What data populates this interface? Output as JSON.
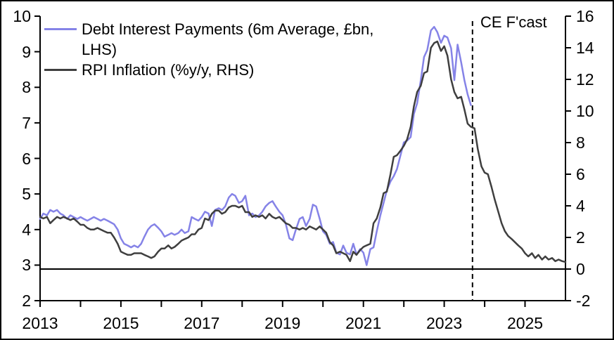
{
  "chart_data": {
    "type": "line",
    "title": "",
    "legend": {
      "items": [
        {
          "id": "debt-interest",
          "color": "#8583E7",
          "label": "Debt Interest Payments (6m Average, £bn, LHS)",
          "lines": [
            "Debt Interest Payments (6m Average, £bn,",
            "LHS)"
          ]
        },
        {
          "id": "rpi-inflation",
          "color": "#3F3F3F",
          "label": "RPI Inflation (%y/y, RHS)",
          "lines": [
            "RPI Inflation (%y/y, RHS)",
            ""
          ]
        }
      ]
    },
    "annotation": {
      "label": "CE F'cast",
      "x_year": 2023.7
    },
    "x_axis": {
      "min": 2013,
      "max": 2026,
      "tick_years": [
        2013,
        2014,
        2015,
        2016,
        2017,
        2018,
        2019,
        2020,
        2021,
        2022,
        2023,
        2024,
        2025
      ],
      "label_years": [
        2013,
        2015,
        2017,
        2019,
        2021,
        2023,
        2025
      ]
    },
    "left_axis": {
      "min": 2,
      "max": 10,
      "ticks": [
        2,
        3,
        4,
        5,
        6,
        7,
        8,
        9,
        10
      ]
    },
    "right_axis": {
      "min": -2,
      "max": 16,
      "ticks": [
        -2,
        0,
        2,
        4,
        6,
        8,
        10,
        12,
        14,
        16
      ],
      "zero_line": 0
    },
    "colors": {
      "axis": "#000000",
      "forecast_divider": "#000000",
      "background": "#ffffff"
    },
    "series": [
      {
        "id": "debt-interest",
        "name": "Debt Interest Payments (6m Average, £bn, LHS)",
        "axis": "left",
        "color": "#8583E7",
        "points": [
          [
            2013.0,
            4.3
          ],
          [
            2013.08,
            4.45
          ],
          [
            2013.17,
            4.4
          ],
          [
            2013.25,
            4.55
          ],
          [
            2013.33,
            4.5
          ],
          [
            2013.42,
            4.55
          ],
          [
            2013.5,
            4.45
          ],
          [
            2013.58,
            4.4
          ],
          [
            2013.67,
            4.3
          ],
          [
            2013.75,
            4.4
          ],
          [
            2013.83,
            4.35
          ],
          [
            2013.92,
            4.3
          ],
          [
            2014.0,
            4.35
          ],
          [
            2014.08,
            4.3
          ],
          [
            2014.17,
            4.25
          ],
          [
            2014.25,
            4.3
          ],
          [
            2014.33,
            4.35
          ],
          [
            2014.42,
            4.3
          ],
          [
            2014.5,
            4.25
          ],
          [
            2014.58,
            4.3
          ],
          [
            2014.67,
            4.25
          ],
          [
            2014.75,
            4.2
          ],
          [
            2014.83,
            4.15
          ],
          [
            2014.92,
            4.0
          ],
          [
            2015.0,
            3.75
          ],
          [
            2015.08,
            3.6
          ],
          [
            2015.17,
            3.55
          ],
          [
            2015.25,
            3.5
          ],
          [
            2015.33,
            3.55
          ],
          [
            2015.42,
            3.5
          ],
          [
            2015.5,
            3.6
          ],
          [
            2015.58,
            3.8
          ],
          [
            2015.67,
            4.0
          ],
          [
            2015.75,
            4.1
          ],
          [
            2015.83,
            4.15
          ],
          [
            2015.92,
            4.05
          ],
          [
            2016.0,
            3.95
          ],
          [
            2016.08,
            3.8
          ],
          [
            2016.17,
            3.85
          ],
          [
            2016.25,
            3.9
          ],
          [
            2016.33,
            3.85
          ],
          [
            2016.42,
            3.9
          ],
          [
            2016.5,
            4.0
          ],
          [
            2016.58,
            3.9
          ],
          [
            2016.67,
            3.95
          ],
          [
            2016.75,
            4.35
          ],
          [
            2016.83,
            4.3
          ],
          [
            2016.92,
            4.25
          ],
          [
            2017.0,
            4.35
          ],
          [
            2017.08,
            4.5
          ],
          [
            2017.17,
            4.45
          ],
          [
            2017.25,
            4.1
          ],
          [
            2017.33,
            4.55
          ],
          [
            2017.42,
            4.6
          ],
          [
            2017.5,
            4.55
          ],
          [
            2017.58,
            4.65
          ],
          [
            2017.67,
            4.9
          ],
          [
            2017.75,
            5.0
          ],
          [
            2017.83,
            4.95
          ],
          [
            2017.92,
            4.75
          ],
          [
            2018.0,
            4.8
          ],
          [
            2018.08,
            4.95
          ],
          [
            2018.17,
            4.4
          ],
          [
            2018.25,
            4.45
          ],
          [
            2018.33,
            4.35
          ],
          [
            2018.42,
            4.4
          ],
          [
            2018.5,
            4.5
          ],
          [
            2018.58,
            4.65
          ],
          [
            2018.67,
            4.75
          ],
          [
            2018.75,
            4.8
          ],
          [
            2018.83,
            4.65
          ],
          [
            2018.92,
            4.5
          ],
          [
            2019.0,
            4.4
          ],
          [
            2019.08,
            4.15
          ],
          [
            2019.17,
            3.75
          ],
          [
            2019.25,
            3.7
          ],
          [
            2019.33,
            4.0
          ],
          [
            2019.42,
            4.3
          ],
          [
            2019.5,
            4.35
          ],
          [
            2019.58,
            4.1
          ],
          [
            2019.67,
            4.3
          ],
          [
            2019.75,
            4.7
          ],
          [
            2019.83,
            4.65
          ],
          [
            2019.92,
            4.3
          ],
          [
            2020.0,
            3.95
          ],
          [
            2020.08,
            3.85
          ],
          [
            2020.17,
            3.6
          ],
          [
            2020.25,
            3.65
          ],
          [
            2020.33,
            3.35
          ],
          [
            2020.42,
            3.3
          ],
          [
            2020.5,
            3.55
          ],
          [
            2020.58,
            3.35
          ],
          [
            2020.67,
            3.3
          ],
          [
            2020.75,
            3.6
          ],
          [
            2020.83,
            3.3
          ],
          [
            2020.92,
            3.45
          ],
          [
            2021.0,
            3.35
          ],
          [
            2021.08,
            3.0
          ],
          [
            2021.17,
            3.45
          ],
          [
            2021.25,
            3.5
          ],
          [
            2021.33,
            3.95
          ],
          [
            2021.42,
            4.4
          ],
          [
            2021.5,
            4.75
          ],
          [
            2021.58,
            5.1
          ],
          [
            2021.67,
            5.35
          ],
          [
            2021.75,
            5.5
          ],
          [
            2021.83,
            5.7
          ],
          [
            2021.92,
            6.1
          ],
          [
            2022.0,
            6.45
          ],
          [
            2022.08,
            6.5
          ],
          [
            2022.17,
            6.6
          ],
          [
            2022.25,
            7.25
          ],
          [
            2022.33,
            7.55
          ],
          [
            2022.42,
            8.2
          ],
          [
            2022.5,
            8.85
          ],
          [
            2022.58,
            9.05
          ],
          [
            2022.67,
            9.6
          ],
          [
            2022.75,
            9.7
          ],
          [
            2022.83,
            9.55
          ],
          [
            2022.92,
            9.25
          ],
          [
            2023.0,
            9.45
          ],
          [
            2023.08,
            9.4
          ],
          [
            2023.17,
            9.1
          ],
          [
            2023.25,
            8.2
          ],
          [
            2023.33,
            9.2
          ],
          [
            2023.42,
            8.7
          ],
          [
            2023.5,
            8.2
          ],
          [
            2023.58,
            7.8
          ],
          [
            2023.66,
            7.5
          ]
        ]
      },
      {
        "id": "rpi-inflation",
        "name": "RPI Inflation (%y/y, RHS)",
        "axis": "right",
        "color": "#3F3F3F",
        "points": [
          [
            2013.0,
            3.3
          ],
          [
            2013.08,
            3.2
          ],
          [
            2013.17,
            3.3
          ],
          [
            2013.25,
            2.9
          ],
          [
            2013.33,
            3.1
          ],
          [
            2013.42,
            3.3
          ],
          [
            2013.5,
            3.2
          ],
          [
            2013.58,
            3.3
          ],
          [
            2013.67,
            3.2
          ],
          [
            2013.75,
            3.1
          ],
          [
            2013.83,
            3.2
          ],
          [
            2013.92,
            3.0
          ],
          [
            2014.0,
            2.8
          ],
          [
            2014.08,
            2.8
          ],
          [
            2014.17,
            2.6
          ],
          [
            2014.25,
            2.5
          ],
          [
            2014.33,
            2.5
          ],
          [
            2014.42,
            2.6
          ],
          [
            2014.5,
            2.5
          ],
          [
            2014.58,
            2.4
          ],
          [
            2014.67,
            2.3
          ],
          [
            2014.75,
            2.3
          ],
          [
            2014.83,
            2.0
          ],
          [
            2014.92,
            1.6
          ],
          [
            2015.0,
            1.1
          ],
          [
            2015.08,
            1.0
          ],
          [
            2015.17,
            0.9
          ],
          [
            2015.25,
            0.9
          ],
          [
            2015.33,
            1.0
          ],
          [
            2015.42,
            1.0
          ],
          [
            2015.5,
            1.0
          ],
          [
            2015.58,
            0.9
          ],
          [
            2015.67,
            0.8
          ],
          [
            2015.75,
            0.7
          ],
          [
            2015.83,
            0.8
          ],
          [
            2015.92,
            1.1
          ],
          [
            2016.0,
            1.3
          ],
          [
            2016.08,
            1.3
          ],
          [
            2016.17,
            1.5
          ],
          [
            2016.25,
            1.3
          ],
          [
            2016.33,
            1.4
          ],
          [
            2016.42,
            1.6
          ],
          [
            2016.5,
            1.8
          ],
          [
            2016.58,
            1.9
          ],
          [
            2016.67,
            2.0
          ],
          [
            2016.75,
            2.2
          ],
          [
            2016.83,
            2.2
          ],
          [
            2016.92,
            2.5
          ],
          [
            2017.0,
            2.6
          ],
          [
            2017.08,
            3.2
          ],
          [
            2017.17,
            3.1
          ],
          [
            2017.25,
            3.5
          ],
          [
            2017.33,
            3.7
          ],
          [
            2017.42,
            3.7
          ],
          [
            2017.5,
            3.5
          ],
          [
            2017.58,
            3.6
          ],
          [
            2017.67,
            3.9
          ],
          [
            2017.75,
            4.0
          ],
          [
            2017.83,
            4.0
          ],
          [
            2017.92,
            3.9
          ],
          [
            2018.0,
            4.0
          ],
          [
            2018.08,
            3.6
          ],
          [
            2018.17,
            3.6
          ],
          [
            2018.25,
            3.3
          ],
          [
            2018.33,
            3.4
          ],
          [
            2018.42,
            3.3
          ],
          [
            2018.5,
            3.4
          ],
          [
            2018.58,
            3.2
          ],
          [
            2018.67,
            3.5
          ],
          [
            2018.75,
            3.3
          ],
          [
            2018.83,
            3.2
          ],
          [
            2018.92,
            3.3
          ],
          [
            2019.0,
            3.1
          ],
          [
            2019.08,
            2.9
          ],
          [
            2019.17,
            2.8
          ],
          [
            2019.25,
            2.6
          ],
          [
            2019.33,
            2.6
          ],
          [
            2019.42,
            2.5
          ],
          [
            2019.5,
            2.6
          ],
          [
            2019.58,
            2.5
          ],
          [
            2019.67,
            2.7
          ],
          [
            2019.75,
            2.6
          ],
          [
            2019.83,
            2.5
          ],
          [
            2019.92,
            2.7
          ],
          [
            2020.0,
            2.5
          ],
          [
            2020.08,
            2.3
          ],
          [
            2020.17,
            1.7
          ],
          [
            2020.25,
            1.5
          ],
          [
            2020.33,
            1.0
          ],
          [
            2020.42,
            1.1
          ],
          [
            2020.5,
            1.0
          ],
          [
            2020.58,
            0.9
          ],
          [
            2020.67,
            0.5
          ],
          [
            2020.75,
            1.1
          ],
          [
            2020.83,
            0.9
          ],
          [
            2020.92,
            1.2
          ],
          [
            2021.0,
            1.4
          ],
          [
            2021.08,
            1.5
          ],
          [
            2021.17,
            1.6
          ],
          [
            2021.25,
            2.9
          ],
          [
            2021.33,
            3.2
          ],
          [
            2021.42,
            3.9
          ],
          [
            2021.5,
            4.8
          ],
          [
            2021.58,
            4.9
          ],
          [
            2021.67,
            6.0
          ],
          [
            2021.75,
            7.1
          ],
          [
            2021.83,
            7.2
          ],
          [
            2021.92,
            7.5
          ],
          [
            2022.0,
            7.8
          ],
          [
            2022.08,
            8.2
          ],
          [
            2022.17,
            9.0
          ],
          [
            2022.25,
            10.3
          ],
          [
            2022.33,
            11.2
          ],
          [
            2022.42,
            11.6
          ],
          [
            2022.5,
            12.4
          ],
          [
            2022.58,
            12.5
          ],
          [
            2022.67,
            14.0
          ],
          [
            2022.75,
            14.3
          ],
          [
            2022.83,
            14.4
          ],
          [
            2022.92,
            13.8
          ],
          [
            2023.0,
            14.1
          ],
          [
            2023.08,
            13.5
          ],
          [
            2023.17,
            12.0
          ],
          [
            2023.25,
            11.2
          ],
          [
            2023.33,
            10.8
          ],
          [
            2023.42,
            10.9
          ],
          [
            2023.5,
            10.1
          ],
          [
            2023.58,
            9.2
          ],
          [
            2023.66,
            9.0
          ],
          [
            2023.75,
            8.9
          ],
          [
            2023.83,
            7.6
          ],
          [
            2023.92,
            6.5
          ],
          [
            2024.0,
            6.1
          ],
          [
            2024.08,
            6.0
          ],
          [
            2024.17,
            5.2
          ],
          [
            2024.25,
            4.4
          ],
          [
            2024.33,
            3.7
          ],
          [
            2024.42,
            2.9
          ],
          [
            2024.5,
            2.4
          ],
          [
            2024.58,
            2.1
          ],
          [
            2024.67,
            1.9
          ],
          [
            2024.75,
            1.7
          ],
          [
            2024.83,
            1.5
          ],
          [
            2024.92,
            1.3
          ],
          [
            2025.0,
            1.0
          ],
          [
            2025.08,
            0.8
          ],
          [
            2025.17,
            1.0
          ],
          [
            2025.25,
            0.7
          ],
          [
            2025.33,
            0.9
          ],
          [
            2025.42,
            0.6
          ],
          [
            2025.5,
            0.8
          ],
          [
            2025.58,
            0.6
          ],
          [
            2025.67,
            0.7
          ],
          [
            2025.75,
            0.5
          ],
          [
            2025.83,
            0.6
          ],
          [
            2025.92,
            0.5
          ],
          [
            2026.0,
            0.45
          ]
        ]
      }
    ]
  }
}
